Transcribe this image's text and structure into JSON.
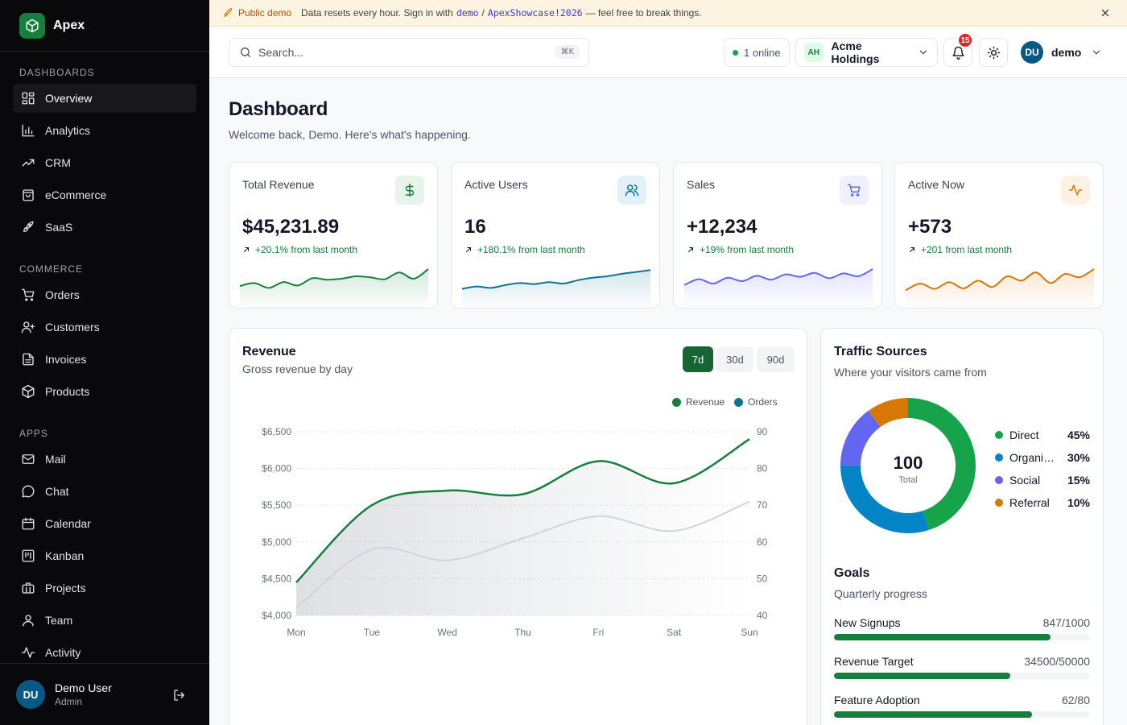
{
  "app": {
    "name": "Apex"
  },
  "banner": {
    "label": "Public demo",
    "text_before": "Data resets every hour. Sign in with",
    "username": "demo",
    "separator": "/",
    "password": "ApexShowcase!2026",
    "text_after": "— feel free to break things."
  },
  "sidebar": {
    "sections": [
      {
        "heading": "DASHBOARDS",
        "items": [
          {
            "label": "Overview",
            "icon": "layout-grid-icon",
            "active": true
          },
          {
            "label": "Analytics",
            "icon": "bar-chart-icon"
          },
          {
            "label": "CRM",
            "icon": "trending-up-icon"
          },
          {
            "label": "eCommerce",
            "icon": "shopping-bag-icon"
          },
          {
            "label": "SaaS",
            "icon": "rocket-icon"
          }
        ]
      },
      {
        "heading": "COMMERCE",
        "items": [
          {
            "label": "Orders",
            "icon": "shopping-cart-icon"
          },
          {
            "label": "Customers",
            "icon": "user-plus-icon"
          },
          {
            "label": "Invoices",
            "icon": "file-text-icon"
          },
          {
            "label": "Products",
            "icon": "package-icon"
          }
        ]
      },
      {
        "heading": "APPS",
        "items": [
          {
            "label": "Mail",
            "icon": "mail-icon"
          },
          {
            "label": "Chat",
            "icon": "message-circle-icon"
          },
          {
            "label": "Calendar",
            "icon": "calendar-icon"
          },
          {
            "label": "Kanban",
            "icon": "kanban-icon"
          },
          {
            "label": "Projects",
            "icon": "briefcase-icon"
          },
          {
            "label": "Team",
            "icon": "user-icon"
          },
          {
            "label": "Activity",
            "icon": "activity-icon"
          }
        ]
      }
    ],
    "user": {
      "initials": "DU",
      "name": "Demo User",
      "role": "Admin"
    }
  },
  "topbar": {
    "search_placeholder": "Search...",
    "search_shortcut": "⌘K",
    "online_count": "1",
    "online_label": "online",
    "org_initials": "AH",
    "org_name": "Acme Holdings",
    "notifications": "15",
    "user_initials": "DU",
    "user_name": "demo"
  },
  "page": {
    "title": "Dashboard",
    "subtitle": "Welcome back, Demo. Here's what's happening."
  },
  "stats": [
    {
      "title": "Total Revenue",
      "value": "$45,231.89",
      "delta": "+20.1% from last month",
      "icon": "dollar-icon",
      "color": "#15803d",
      "bg": "#e6f4ea"
    },
    {
      "title": "Active Users",
      "value": "16",
      "delta": "+180.1% from last month",
      "icon": "users-icon",
      "color": "#0e7490",
      "bg": "#e0f2f7"
    },
    {
      "title": "Sales",
      "value": "+12,234",
      "delta": "+19% from last month",
      "icon": "cart-icon",
      "color": "#6366f1",
      "bg": "#eef0fd"
    },
    {
      "title": "Active Now",
      "value": "+573",
      "delta": "+201 from last month",
      "icon": "pulse-icon",
      "color": "#d97706",
      "bg": "#fdf1e3"
    }
  ],
  "sparklines": [
    [
      0.3,
      0.42,
      0.22,
      0.46,
      0.32,
      0.62,
      0.56,
      0.6,
      0.7,
      0.66,
      0.58,
      0.86,
      0.6,
      1.0
    ],
    [
      0.18,
      0.28,
      0.22,
      0.34,
      0.42,
      0.38,
      0.46,
      0.4,
      0.54,
      0.64,
      0.7,
      0.8,
      0.88,
      0.96
    ],
    [
      0.34,
      0.58,
      0.4,
      0.64,
      0.5,
      0.72,
      0.56,
      0.78,
      0.68,
      0.84,
      0.62,
      0.82,
      0.7,
      1.0
    ],
    [
      0.12,
      0.4,
      0.18,
      0.46,
      0.2,
      0.52,
      0.26,
      0.7,
      0.52,
      0.86,
      0.42,
      0.8,
      0.66,
      1.0
    ]
  ],
  "revenue_card": {
    "title": "Revenue",
    "subtitle": "Gross revenue by day",
    "ranges": [
      "7d",
      "30d",
      "90d"
    ],
    "active_range": "7d"
  },
  "chart_data": {
    "type": "area",
    "title": "Revenue",
    "categories": [
      "Mon",
      "Tue",
      "Wed",
      "Thu",
      "Fri",
      "Sat",
      "Sun"
    ],
    "series": [
      {
        "name": "Revenue",
        "axis": "left",
        "color": "#15803d",
        "values": [
          4450,
          5500,
          5700,
          5650,
          6100,
          5800,
          6400
        ]
      },
      {
        "name": "Orders",
        "axis": "right",
        "color": "#0e7490",
        "values": [
          42,
          58,
          55,
          61,
          67,
          63,
          71
        ]
      }
    ],
    "y_left": {
      "ylim": [
        4000,
        6500
      ],
      "ticks": [
        "$4,000",
        "$4,500",
        "$5,000",
        "$5,500",
        "$6,000",
        "$6,500"
      ]
    },
    "y_right": {
      "ylim": [
        40,
        90
      ],
      "ticks": [
        "40",
        "50",
        "60",
        "70",
        "80",
        "90"
      ]
    },
    "legend": "top-right",
    "grid": true
  },
  "traffic": {
    "title": "Traffic Sources",
    "subtitle": "Where your visitors came from",
    "total": "100",
    "total_label": "Total",
    "sources": [
      {
        "name": "Direct",
        "percent": 45,
        "label": "45%",
        "color": "#16a34a"
      },
      {
        "name": "Organic Search",
        "percent": 30,
        "label": "30%",
        "color": "#0284c7"
      },
      {
        "name": "Social",
        "percent": 15,
        "label": "15%",
        "color": "#6366f1"
      },
      {
        "name": "Referral",
        "percent": 10,
        "label": "10%",
        "color": "#d97706"
      }
    ]
  },
  "goals": {
    "title": "Goals",
    "subtitle": "Quarterly progress",
    "items": [
      {
        "name": "New Signups",
        "value": "847/1000",
        "progress": 0.847
      },
      {
        "name": "Revenue Target",
        "value": "34500/50000",
        "progress": 0.69
      },
      {
        "name": "Feature Adoption",
        "value": "62/80",
        "progress": 0.775
      }
    ]
  }
}
